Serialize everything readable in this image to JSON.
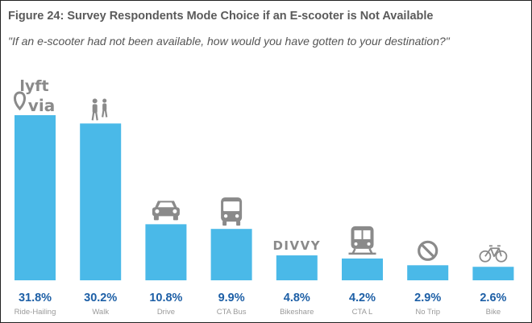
{
  "chart": {
    "title": "Figure 24: Survey Respondents Mode Choice if an E-scooter is Not Available",
    "subtitle": "\"If an e-scooter had not been available, how would you have gotten to your destination?\""
  },
  "colors": {
    "bar": "#4ab9e8",
    "value_text": "#1d5fa6",
    "category_text": "#9a9a9a",
    "icon": "#8a8a8a"
  },
  "logos": {
    "lyft": "lyft",
    "via": "via",
    "divvy": "DIVVY"
  },
  "icons": [
    "lyft-via-logo",
    "pedestrians-icon",
    "car-icon",
    "bus-icon",
    "divvy-logo",
    "train-icon",
    "no-icon",
    "bicycle-icon"
  ],
  "chart_data": {
    "type": "bar",
    "categories": [
      "Ride-Hailing",
      "Walk",
      "Drive",
      "CTA Bus",
      "Bikeshare",
      "CTA L",
      "No Trip",
      "Bike"
    ],
    "values": [
      31.8,
      30.2,
      10.8,
      9.9,
      4.8,
      4.2,
      2.9,
      2.6
    ],
    "value_labels": [
      "31.8%",
      "30.2%",
      "10.8%",
      "9.9%",
      "4.8%",
      "4.2%",
      "2.9%",
      "2.6%"
    ],
    "unit": "%",
    "ylim": [
      0,
      31.8
    ],
    "grid": false,
    "legend": "none"
  }
}
